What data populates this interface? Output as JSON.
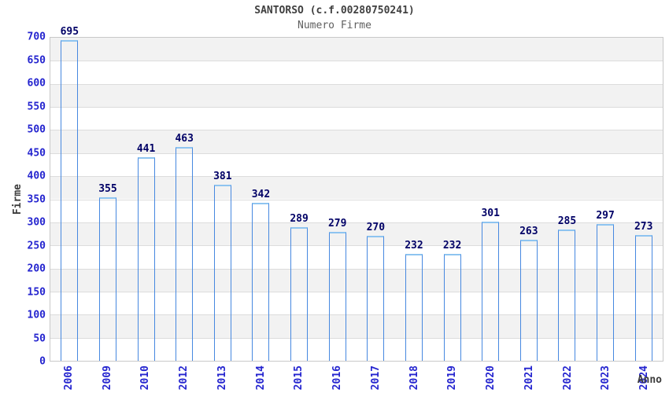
{
  "header": {
    "title": "SANTORSO (c.f.00280750241)",
    "subtitle": "Numero Firme"
  },
  "chart_data": {
    "type": "bar",
    "title": "SANTORSO (c.f.00280750241)",
    "subtitle": "Numero Firme",
    "categories": [
      "2006",
      "2009",
      "2010",
      "2012",
      "2013",
      "2014",
      "2015",
      "2016",
      "2017",
      "2018",
      "2019",
      "2020",
      "2021",
      "2022",
      "2023",
      "2024"
    ],
    "values": [
      695,
      355,
      441,
      463,
      381,
      342,
      289,
      279,
      270,
      232,
      232,
      301,
      263,
      285,
      297,
      273
    ],
    "xlabel": "Anno",
    "ylabel": "Firme",
    "ylim": [
      0,
      700
    ],
    "y_ticks": [
      0,
      50,
      100,
      150,
      200,
      250,
      300,
      350,
      400,
      450,
      500,
      550,
      600,
      650,
      700
    ],
    "grid": "horizontal bands, alternating gray/white every 50 units",
    "legend": "none",
    "colors": {
      "bar_edge_dark": "#101a6b",
      "bar_center_light": "#bcc3e8",
      "bar_border": "#4688e0",
      "bar_border_top": "#8ec4f0",
      "tick_label_blue": "#2424cf",
      "value_label_navy": "#000066",
      "band_gray": "#f2f2f2",
      "gridline": "#dcdcdc",
      "plot_border": "#c8c8c8",
      "title_color": "#404040",
      "subtitle_color": "#5f5f5f"
    }
  }
}
